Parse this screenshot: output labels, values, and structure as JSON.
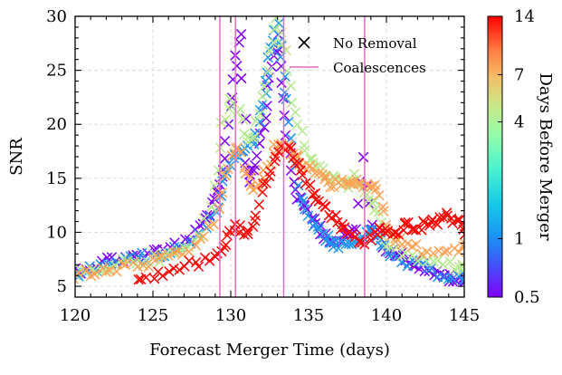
{
  "chart_data": {
    "type": "scatter",
    "title": "",
    "xlabel": "Forecast Merger Time (days)",
    "ylabel": "SNR",
    "xlim": [
      120,
      145
    ],
    "ylim": [
      4,
      30
    ],
    "xticks": [
      "120",
      "125",
      "130",
      "135",
      "140",
      "145"
    ],
    "yticks": [
      "5",
      "10",
      "15",
      "20",
      "25",
      "30"
    ],
    "grid": true,
    "legend_position": "top-right",
    "legend": [
      {
        "label": "No Removal",
        "marker": "x"
      },
      {
        "label": "Coalescences",
        "marker": "line"
      }
    ],
    "colorbar": {
      "label": "Days Before Merger",
      "scale": "log",
      "range": [
        0.5,
        14
      ],
      "ticks": [
        "14",
        "7",
        "4",
        "1",
        "0.5"
      ],
      "colormap": "rainbow"
    },
    "coalescences": [
      129.3,
      130.3,
      133.4,
      138.6
    ],
    "series": [
      {
        "days_before": 0.5,
        "color": "#7f00ff",
        "x": [
          120,
          121,
          122,
          123,
          124,
          125,
          126,
          127,
          128,
          128.5,
          129,
          129.3,
          129.6,
          130,
          130.3,
          130.6,
          131,
          131.3,
          131.6,
          132,
          132.3,
          132.6,
          133,
          133.3,
          133.6,
          134,
          134.5,
          135,
          135.5,
          136,
          136.5,
          137,
          137.5,
          138,
          138.5,
          139,
          139.5,
          140,
          140.5,
          141,
          141.5,
          142,
          142.5,
          143,
          143.5,
          144,
          144.5,
          145
        ],
        "y": [
          6.5,
          6.8,
          7.4,
          7.6,
          7.8,
          8.1,
          8.6,
          9.2,
          10.3,
          11.5,
          12.8,
          14.2,
          17.0,
          21.5,
          25.5,
          28.5,
          16.5,
          15.0,
          16.5,
          19.0,
          22.0,
          25.5,
          28.0,
          24.0,
          19.0,
          14.5,
          12.8,
          11.8,
          10.8,
          9.8,
          9.4,
          9.2,
          9.6,
          10.4,
          16.8,
          10.5,
          9.6,
          8.6,
          8.2,
          7.8,
          7.4,
          7.1,
          6.7,
          6.3,
          6.0,
          5.8,
          5.6,
          5.5
        ]
      },
      {
        "days_before": 1,
        "color": "#1e96f2",
        "x": [
          120,
          121,
          122,
          123,
          124,
          125,
          126,
          127,
          128,
          129,
          129.5,
          130,
          130.5,
          131,
          131.5,
          132,
          132.3,
          132.6,
          133,
          133.3,
          133.6,
          134,
          134.5,
          135,
          135.5,
          136,
          136.5,
          137,
          137.5,
          138,
          138.5,
          139,
          139.5,
          140,
          141,
          142,
          143,
          144,
          145
        ],
        "y": [
          6.2,
          6.6,
          7.2,
          7.3,
          7.6,
          7.8,
          8.2,
          8.6,
          9.6,
          11.8,
          14.5,
          16.5,
          17.0,
          17.5,
          18.5,
          21.0,
          24.0,
          27.0,
          29.0,
          26.0,
          22.0,
          17.0,
          13.5,
          11.5,
          10.5,
          9.6,
          9.0,
          8.8,
          8.7,
          9.0,
          9.8,
          10.0,
          9.5,
          7.9,
          7.2,
          6.9,
          6.4,
          6.0,
          5.8
        ]
      },
      {
        "days_before": 4,
        "color": "#b6e98e",
        "x": [
          120,
          121,
          122,
          123,
          124,
          125,
          126,
          127,
          128,
          129,
          129.5,
          130,
          130.5,
          131,
          131.5,
          132,
          132.5,
          133,
          133.5,
          134,
          134.5,
          135,
          135.5,
          136,
          136.5,
          137,
          137.5,
          138,
          138.5,
          139,
          139.5,
          140,
          141,
          142,
          143,
          144,
          145
        ],
        "y": [
          6.0,
          6.3,
          6.8,
          7.2,
          7.4,
          7.6,
          7.8,
          8.3,
          9.6,
          14.0,
          20.0,
          22.5,
          21.0,
          18.5,
          19.0,
          22.5,
          26.5,
          30.0,
          26.5,
          22.0,
          19.0,
          17.0,
          16.0,
          15.5,
          15.0,
          14.6,
          14.2,
          15.0,
          14.0,
          13.0,
          11.5,
          9.0,
          8.0,
          7.5,
          7.3,
          7.0,
          6.8
        ]
      },
      {
        "days_before": 7,
        "color": "#ffa256",
        "x": [
          120,
          121,
          122,
          123,
          124,
          125,
          126,
          127,
          128,
          129,
          129.5,
          130,
          130.5,
          131,
          131.5,
          132,
          132.5,
          133,
          133.5,
          134,
          134.5,
          135,
          135.5,
          136,
          136.5,
          137,
          137.5,
          138,
          138.5,
          139,
          139.5,
          140,
          140.5,
          141,
          142,
          143,
          144,
          145
        ],
        "y": [
          6.0,
          6.2,
          6.4,
          6.8,
          7.0,
          7.2,
          7.6,
          8.0,
          9.2,
          11.0,
          14.0,
          17.0,
          17.8,
          15.5,
          14.0,
          14.8,
          16.5,
          18.5,
          18.0,
          17.2,
          16.5,
          16.0,
          15.5,
          15.0,
          14.5,
          14.5,
          15.0,
          14.5,
          14.0,
          14.6,
          13.5,
          10.8,
          9.6,
          9.0,
          8.5,
          8.2,
          8.4,
          8.6
        ]
      },
      {
        "days_before": 14,
        "color": "#ff0000",
        "x": [
          124,
          125,
          126,
          127,
          128,
          129,
          129.5,
          130,
          130.5,
          131,
          131.5,
          132,
          132.5,
          133,
          133.5,
          134,
          134.5,
          135,
          135.5,
          136,
          136.5,
          137,
          137.5,
          138,
          138.5,
          139,
          139.5,
          140,
          140.5,
          141,
          141.5,
          142,
          142.5,
          143,
          143.5,
          144,
          144.5,
          145
        ],
        "y": [
          5.6,
          6.0,
          6.4,
          6.9,
          7.2,
          7.8,
          8.6,
          10.0,
          10.5,
          9.8,
          11.0,
          13.5,
          15.5,
          17.0,
          18.0,
          17.2,
          15.5,
          14.2,
          13.2,
          12.3,
          11.5,
          10.6,
          10.0,
          9.5,
          9.0,
          9.6,
          10.3,
          10.0,
          9.8,
          10.4,
          10.6,
          10.3,
          10.8,
          10.8,
          11.2,
          11.6,
          11.0,
          10.2
        ]
      }
    ]
  }
}
